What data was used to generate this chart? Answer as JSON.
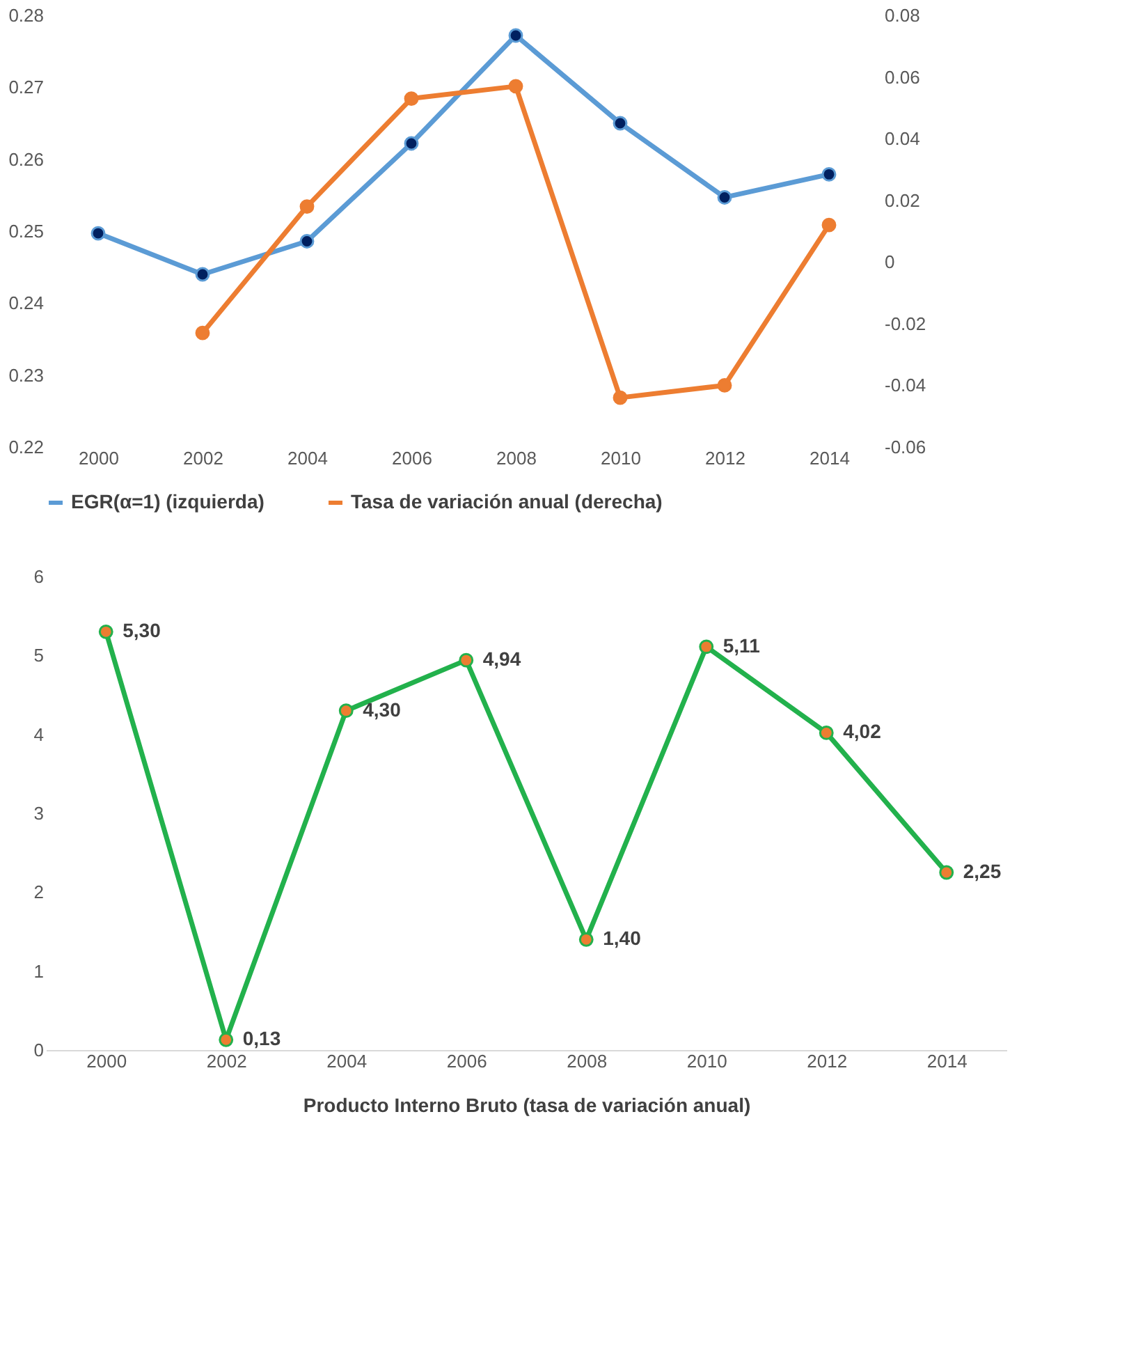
{
  "chart_data": [
    {
      "type": "line",
      "categories": [
        "2000",
        "2002",
        "2004",
        "2006",
        "2008",
        "2010",
        "2012",
        "2014"
      ],
      "series": [
        {
          "name": "EGR(α=1) (izquierda)",
          "color": "#5b9bd5",
          "colors": [
            "#002060",
            "#002060",
            "#002060",
            "#002060",
            "#002060",
            "#002060",
            "#002060",
            "#002060"
          ],
          "values": [
            0.2497,
            0.244,
            0.2486,
            0.2622,
            0.2772,
            0.265,
            0.2547,
            0.2579
          ]
        },
        {
          "name": "Tasa de variación anual (derecha)",
          "color": "#ed7d31",
          "axis": "y2",
          "values": [
            null,
            -0.023,
            0.018,
            0.053,
            0.057,
            -0.044,
            -0.04,
            0.012
          ]
        }
      ],
      "ylim": [
        0.22,
        0.28
      ],
      "yticks": [
        0.22,
        0.23,
        0.24,
        0.25,
        0.26,
        0.27,
        0.28
      ],
      "y2lim": [
        -0.06,
        0.08
      ],
      "y2ticks": [
        -0.06,
        -0.04,
        -0.02,
        0,
        0.02,
        0.04,
        0.06,
        0.08
      ],
      "marker": "circle",
      "line_style": "solid",
      "grid": false,
      "legend": "bottom"
    },
    {
      "type": "line",
      "categories": [
        "2000",
        "2002",
        "2004",
        "2006",
        "2008",
        "2010",
        "2012",
        "2014"
      ],
      "series": [
        {
          "color": "#22b14c",
          "colors": [
            "#ed7d31",
            "#ed7d31",
            "#ed7d31",
            "#ed7d31",
            "#ed7d31",
            "#ed7d31",
            "#ed7d31",
            "#ed7d31"
          ],
          "values": [
            5.3,
            0.13,
            4.3,
            4.94,
            1.4,
            5.11,
            4.02,
            2.25
          ],
          "value_labels": [
            "5,30",
            "0,13",
            "4,30",
            "4,94",
            "1,40",
            "5,11",
            "4,02",
            "2,25"
          ]
        }
      ],
      "xlabel": "Producto Interno Bruto (tasa de variación anual)",
      "ylim": [
        0,
        6
      ],
      "yticks": [
        0,
        1,
        2,
        3,
        4,
        5,
        6
      ],
      "marker": "circle",
      "line_style": "solid",
      "grid": false,
      "legend": false
    }
  ]
}
